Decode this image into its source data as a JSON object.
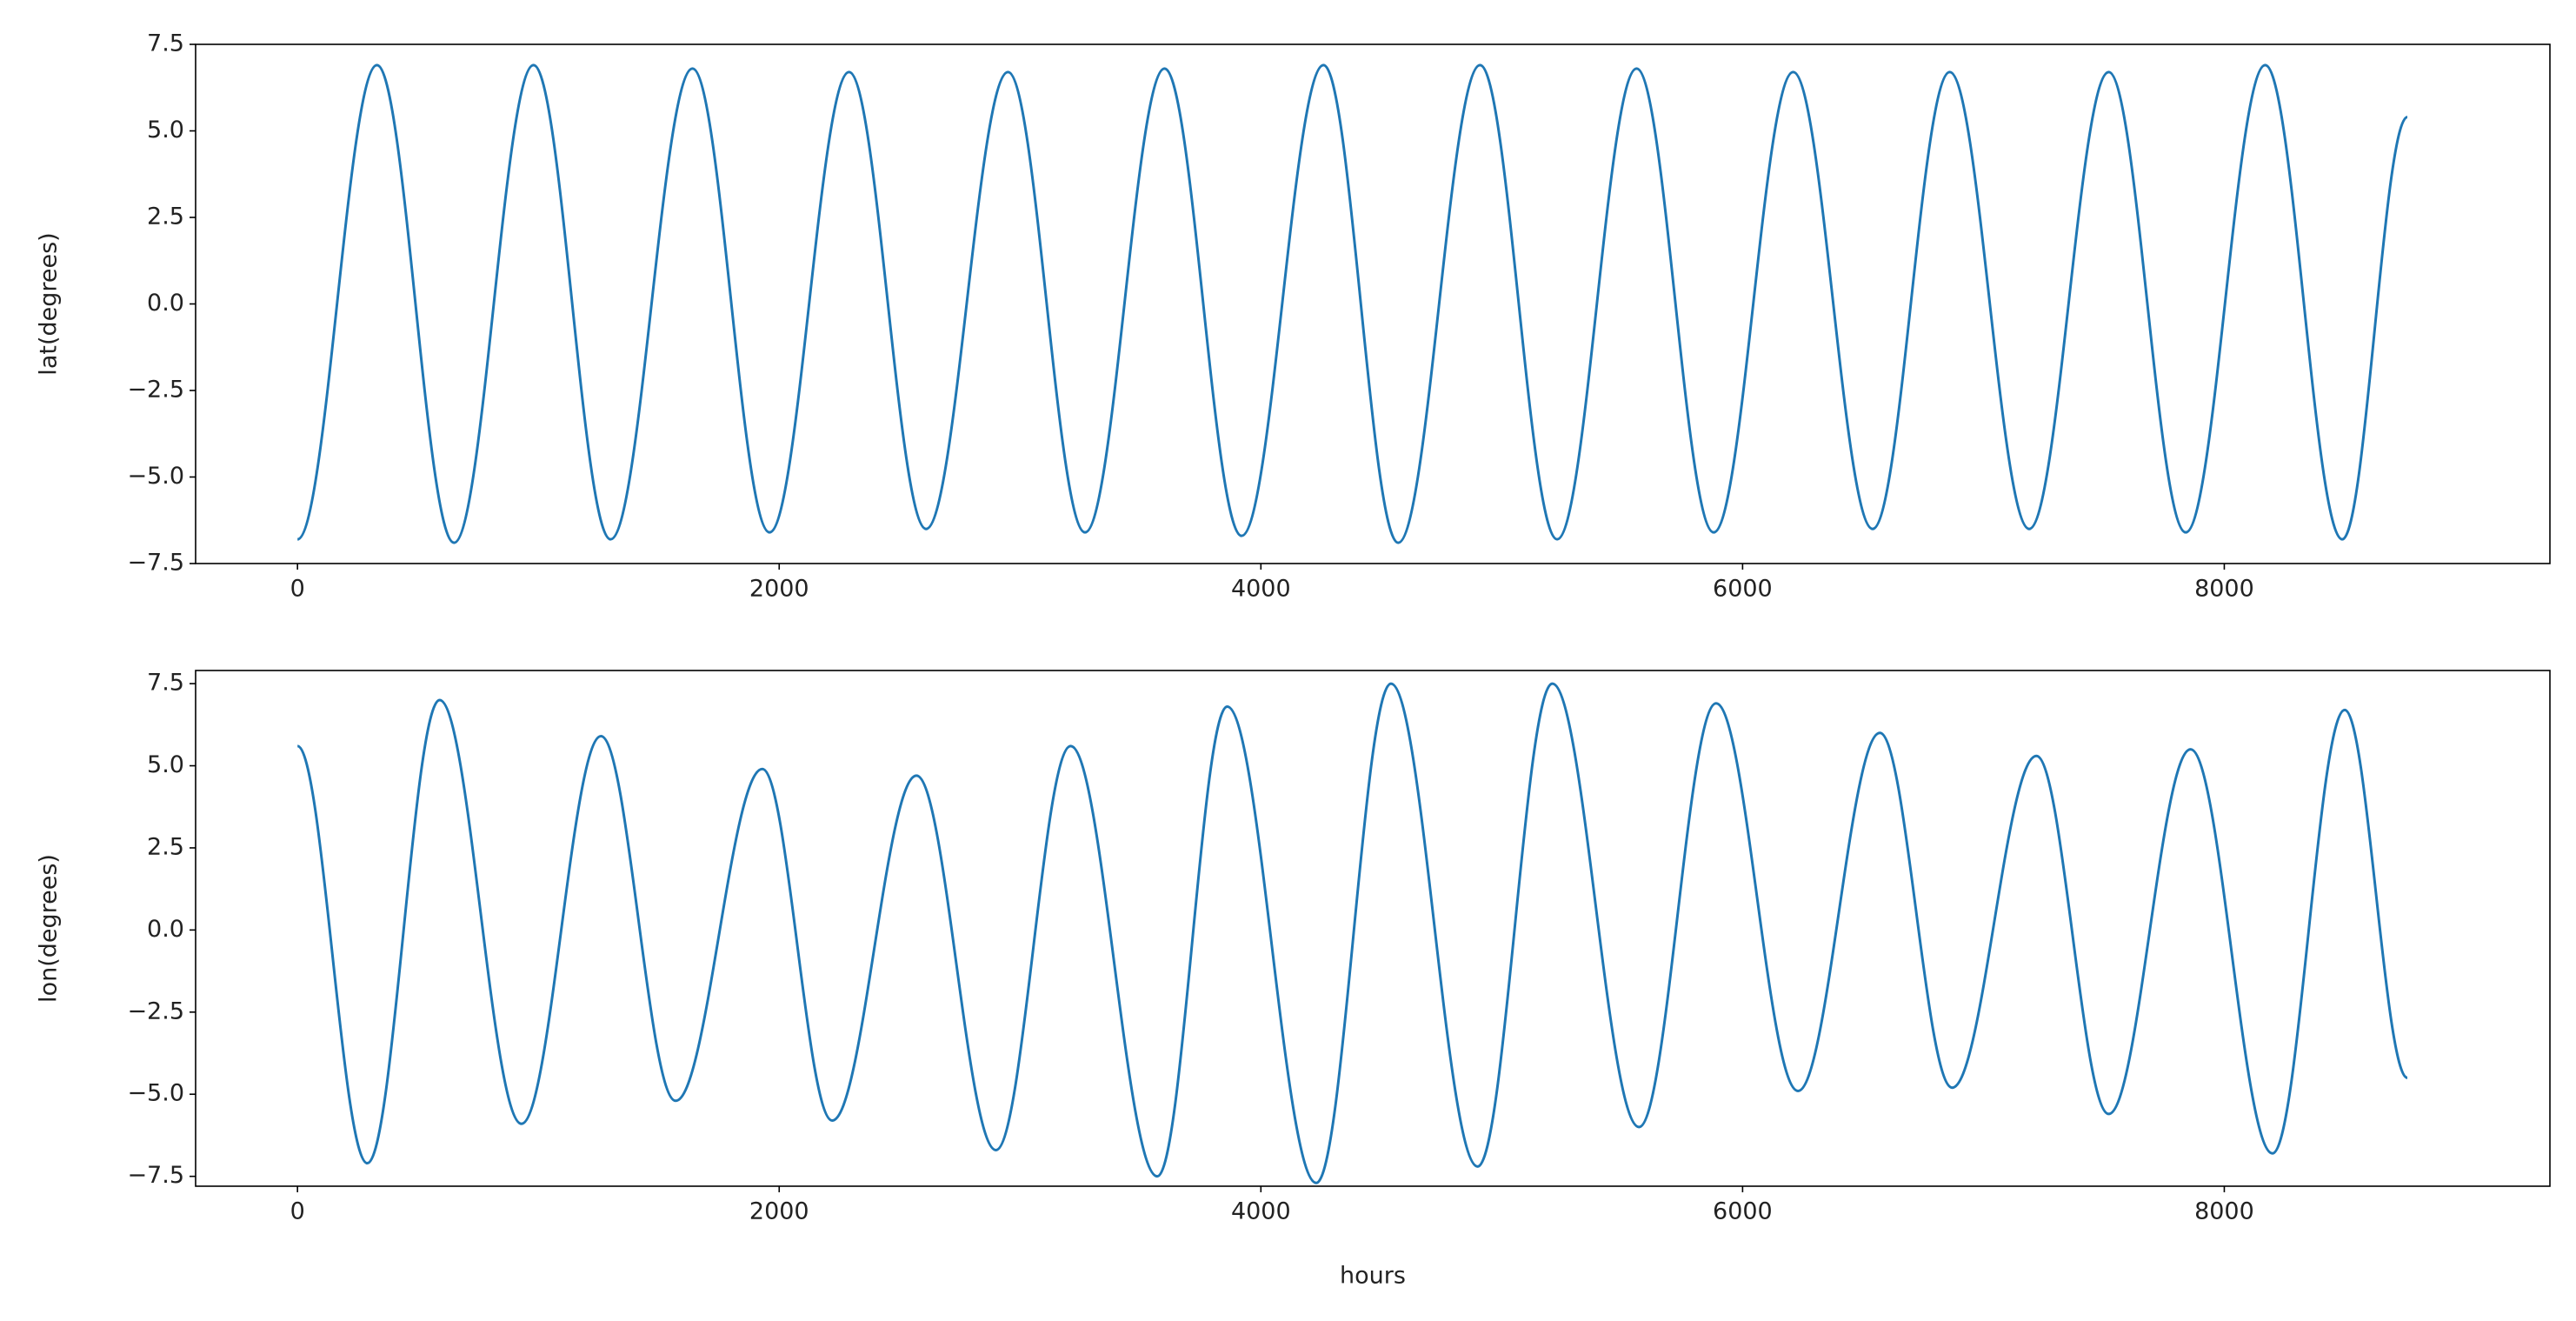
{
  "chart_data": [
    {
      "type": "line",
      "ylabel": "lat(degrees)",
      "color": "#1f77b4",
      "x": [
        0,
        330,
        650,
        980,
        1300,
        1640,
        1960,
        2290,
        2610,
        2950,
        3270,
        3600,
        3920,
        4260,
        4570,
        4910,
        5230,
        5560,
        5880,
        6210,
        6540,
        6860,
        7190,
        7520,
        7840,
        8170,
        8490,
        8760
      ],
      "values": [
        -6.8,
        6.9,
        -6.9,
        6.9,
        -6.8,
        6.8,
        -6.6,
        6.7,
        -6.5,
        6.7,
        -6.6,
        6.8,
        -6.7,
        6.9,
        -6.9,
        6.9,
        -6.8,
        6.8,
        -6.6,
        6.7,
        -6.5,
        6.7,
        -6.5,
        6.7,
        -6.6,
        6.9,
        -6.8,
        5.4
      ],
      "xlim": [
        -423,
        9352
      ],
      "xticks": [
        0,
        2000,
        4000,
        6000,
        8000
      ],
      "ylim": [
        -7.5,
        7.5
      ],
      "yticks": [
        {
          "value": -7.5,
          "label": "−7.5"
        },
        {
          "value": -5,
          "label": "−5.0"
        },
        {
          "value": -2.5,
          "label": "−2.5"
        },
        {
          "value": 0,
          "label": "0.0"
        },
        2.5,
        {
          "value": 5,
          "label": "5.0"
        },
        7.5
      ]
    },
    {
      "type": "line",
      "ylabel": "lon(degrees)",
      "xlabel": "hours",
      "color": "#1f77b4",
      "x": [
        0,
        290,
        590,
        930,
        1260,
        1570,
        1930,
        2220,
        2570,
        2900,
        3210,
        3570,
        3860,
        4230,
        4540,
        4900,
        5210,
        5570,
        5890,
        6230,
        6570,
        6870,
        7220,
        7520,
        7860,
        8200,
        8500,
        8760
      ],
      "values": [
        5.6,
        -7.1,
        7.0,
        -5.9,
        5.9,
        -5.2,
        4.9,
        -5.8,
        4.7,
        -6.7,
        5.6,
        -7.5,
        6.8,
        -7.7,
        7.5,
        -7.2,
        7.5,
        -6.0,
        6.9,
        -4.9,
        6.0,
        -4.8,
        5.3,
        -5.6,
        5.5,
        -6.8,
        6.7,
        -4.5
      ],
      "xlim": [
        -423,
        9352
      ],
      "xticks": [
        0,
        2000,
        4000,
        6000,
        8000
      ],
      "ylim": [
        -7.8,
        7.9
      ],
      "yticks": [
        {
          "value": -7.5,
          "label": "−7.5"
        },
        {
          "value": -5,
          "label": "−5.0"
        },
        {
          "value": -2.5,
          "label": "−2.5"
        },
        {
          "value": 0,
          "label": "0.0"
        },
        2.5,
        {
          "value": 5,
          "label": "5.0"
        },
        7.5
      ]
    }
  ]
}
